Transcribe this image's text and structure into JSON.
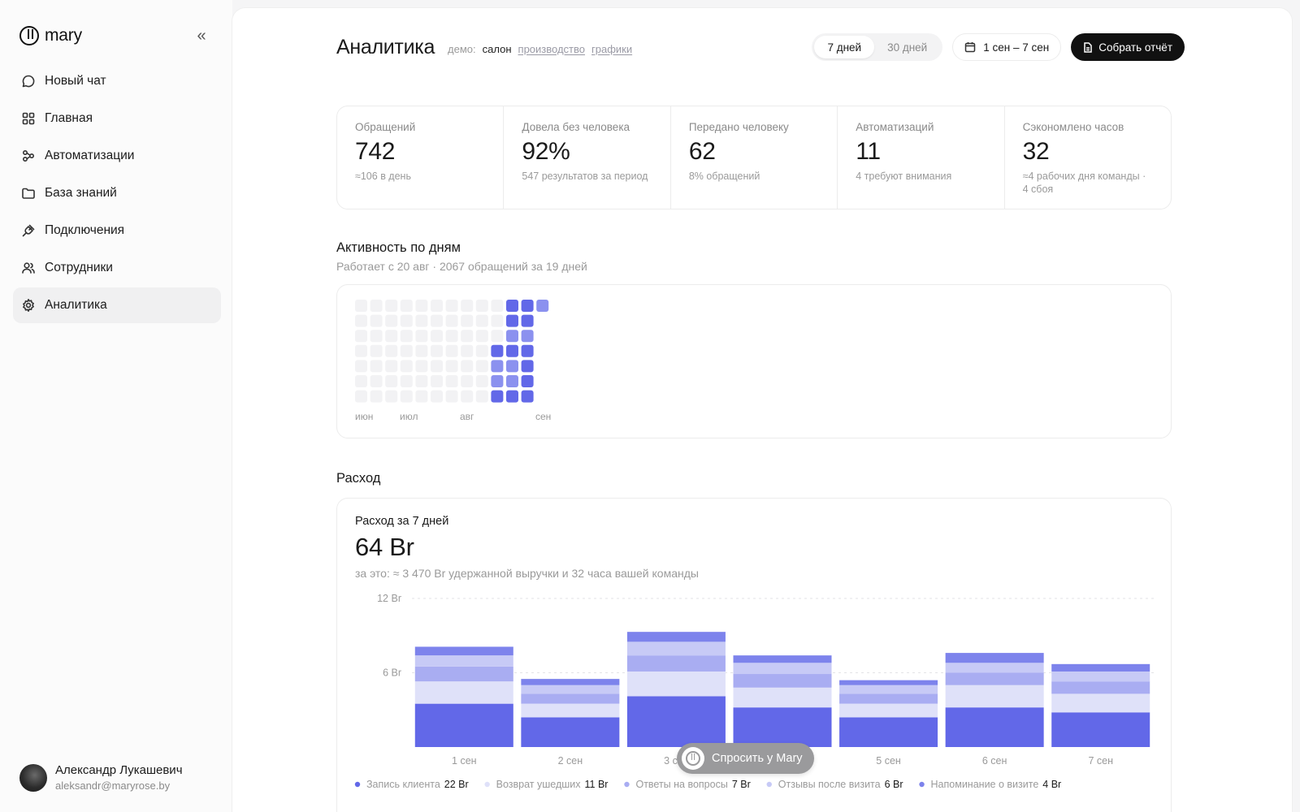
{
  "app": {
    "name": "mary"
  },
  "sidebar": {
    "items": [
      {
        "label": "Новый чат",
        "icon": "chat-bubble-icon"
      },
      {
        "label": "Главная",
        "icon": "grid-icon"
      },
      {
        "label": "Автоматизации",
        "icon": "automation-icon"
      },
      {
        "label": "База знаний",
        "icon": "folder-icon"
      },
      {
        "label": "Подключения",
        "icon": "plug-icon"
      },
      {
        "label": "Сотрудники",
        "icon": "users-icon"
      },
      {
        "label": "Аналитика",
        "icon": "gear-icon",
        "active": true
      }
    ],
    "user": {
      "name": "Александр Лукашевич",
      "email": "aleksandr@maryrose.by"
    }
  },
  "header": {
    "title": "Аналитика",
    "demo_label": "демо:",
    "demo_current": "салон",
    "demo_links": [
      "производство",
      "графики"
    ],
    "range_options": [
      "7 дней",
      "30 дней"
    ],
    "range_selected": "7 дней",
    "date_range": "1 сен – 7 сен",
    "report_button": "Собрать отчёт"
  },
  "stats": [
    {
      "label": "Обращений",
      "value": "742",
      "sub": "≈106 в день"
    },
    {
      "label": "Довела без человека",
      "value": "92%",
      "sub": "547 результатов за период"
    },
    {
      "label": "Передано человеку",
      "value": "62",
      "sub": "8% обращений"
    },
    {
      "label": "Автоматизаций",
      "value": "11",
      "sub": "4 требуют внимания"
    },
    {
      "label": "Сэкономлено часов",
      "value": "32",
      "sub": "≈4 рабочих дня команды · 4 сбоя"
    }
  ],
  "activity": {
    "title": "Активность по дням",
    "subtitle": "Работает с 20 авг · 2067 обращений за 19 дней",
    "months": [
      "июн",
      "июл",
      "авг",
      "сен"
    ],
    "weeks": 13,
    "days_per_week": 7,
    "levels": [
      [
        0,
        0,
        0,
        0,
        0,
        0,
        0
      ],
      [
        0,
        0,
        0,
        0,
        0,
        0,
        0
      ],
      [
        0,
        0,
        0,
        0,
        0,
        0,
        0
      ],
      [
        0,
        0,
        0,
        0,
        0,
        0,
        0
      ],
      [
        0,
        0,
        0,
        0,
        0,
        0,
        0
      ],
      [
        0,
        0,
        0,
        0,
        0,
        0,
        0
      ],
      [
        0,
        0,
        0,
        0,
        0,
        0,
        0
      ],
      [
        0,
        0,
        0,
        0,
        0,
        0,
        0
      ],
      [
        0,
        0,
        0,
        0,
        0,
        0,
        0
      ],
      [
        0,
        0,
        0,
        3,
        2,
        2,
        3
      ],
      [
        3,
        3,
        2,
        3,
        2,
        2,
        3
      ],
      [
        3,
        3,
        2,
        3,
        3,
        3,
        3
      ],
      [
        2,
        null,
        null,
        null,
        null,
        null,
        null
      ]
    ],
    "colors": {
      "empty": "#f2f2f4",
      "low": "#c9ccf8",
      "mid": "#8b91ef",
      "high": "#6268e8"
    }
  },
  "spend": {
    "section_title": "Расход",
    "label": "Расход за 7 дней",
    "total": "64 Br",
    "note": "за это: ≈ 3 470 Br удержанной выручки и 32 часа вашей команды",
    "ask_button": "Спросить у Mary"
  },
  "chart_data": {
    "type": "bar",
    "stacked": true,
    "categories": [
      "1 сен",
      "2 сен",
      "3 сен",
      "4 сен",
      "5 сен",
      "6 сен",
      "7 сен"
    ],
    "ylim": [
      0,
      12
    ],
    "yticks": [
      "12 Br",
      "6 Br"
    ],
    "ytick_values": [
      12,
      6
    ],
    "series": [
      {
        "name": "Запись клиента",
        "total_label": "22 Br",
        "color": "#6268e8",
        "values": [
          3.5,
          2.4,
          4.1,
          3.2,
          2.4,
          3.2,
          2.8
        ]
      },
      {
        "name": "Возврат ушедших",
        "total_label": "11 Br",
        "color": "#dfe1f9",
        "values": [
          1.8,
          1.1,
          2.0,
          1.6,
          1.1,
          1.8,
          1.5
        ]
      },
      {
        "name": "Ответы на вопросы",
        "total_label": "7 Br",
        "color": "#a9adf2",
        "values": [
          1.2,
          0.8,
          1.3,
          1.1,
          0.8,
          1.0,
          1.0
        ]
      },
      {
        "name": "Отзывы после визита",
        "total_label": "6 Br",
        "color": "#c7caf6",
        "values": [
          0.9,
          0.7,
          1.1,
          0.9,
          0.7,
          0.8,
          0.8
        ]
      },
      {
        "name": "Напоминание о визите",
        "total_label": "4 Br",
        "color": "#7d83ec",
        "values": [
          0.7,
          0.5,
          0.8,
          0.6,
          0.4,
          0.8,
          0.6
        ]
      }
    ],
    "grid": true
  }
}
